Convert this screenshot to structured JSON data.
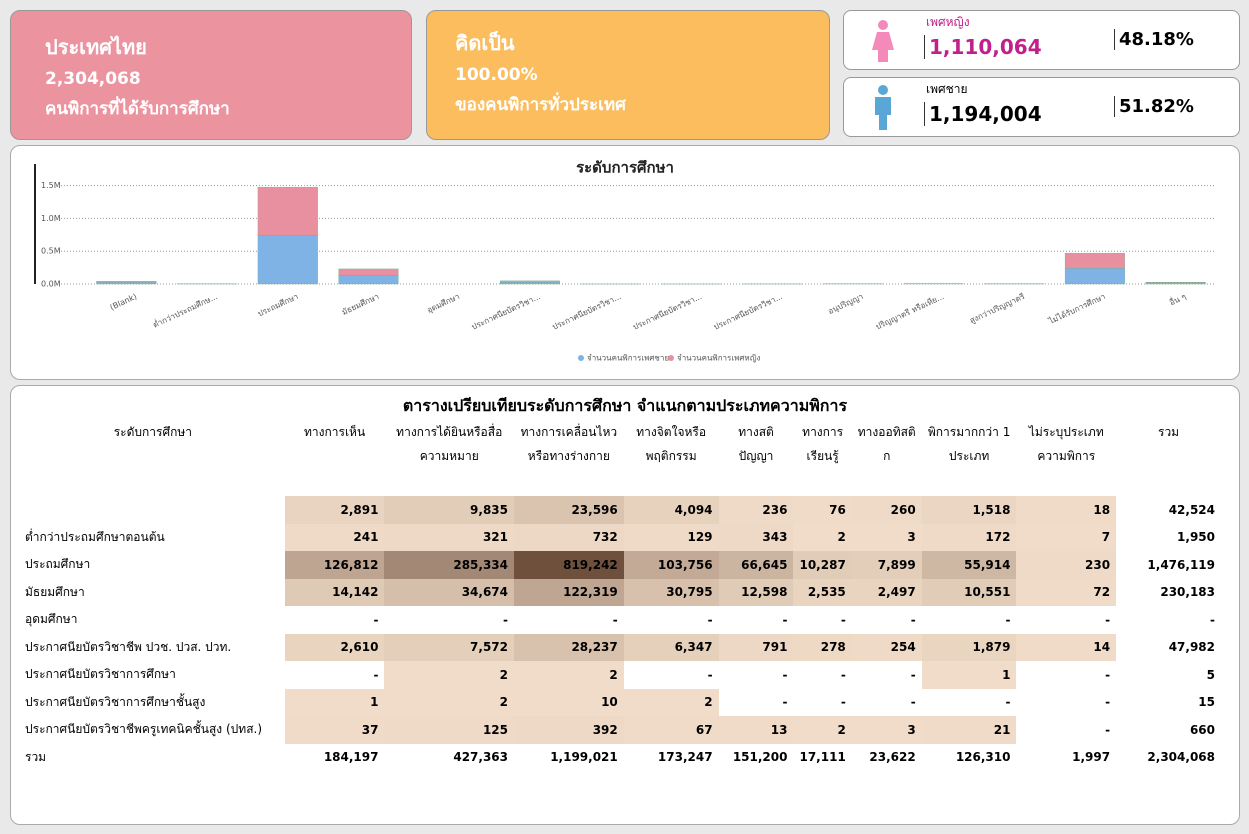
{
  "cards": [
    {
      "title": "ประเทศไทย",
      "value": "2,304,068",
      "subtitle": "คนพิการที่ได้รับการศึกษา"
    },
    {
      "title": "คิดเป็น",
      "value": "100.00%",
      "subtitle": "ของคนพิการทั่วประเทศ"
    }
  ],
  "gender": [
    {
      "label": "เพศหญิง",
      "count": "1,110,064",
      "percent": "48.18%"
    },
    {
      "label": "เพศชาย",
      "count": "1,194,004",
      "percent": "51.82%"
    }
  ],
  "chart_data": {
    "type": "stacked_bar",
    "title": "ระดับการศึกษา",
    "categories": [
      "(Blank)",
      "ต่ำกว่าประถมศึกษ...",
      "ประถมศึกษา",
      "มัธยมศึกษา",
      "อุดมศึกษา",
      "ประกาศนียบัตรวิชา...",
      "ประกาศนียบัตรวิชา...",
      "ประกาศนียบัตรวิชา...",
      "ประกาศนียบัตรวิชา...",
      "อนุปริญญา",
      "ปริญญาตรี หรือเทีย...",
      "สูงกว่าปริญญาตรี",
      "ไม่ได้รับการศึกษา",
      "อื่น ๆ"
    ],
    "series": [
      {
        "name": "จำนวนคนพิการเพศชาย",
        "color": "#7fb2e5",
        "values": [
          25000,
          1000,
          740000,
          130000,
          0,
          28000,
          3,
          8,
          400,
          3000,
          4000,
          2000,
          240000,
          20000
        ]
      },
      {
        "name": "จำนวนคนพิการเพศหญิง",
        "color": "#e8909f",
        "values": [
          17500,
          950,
          736000,
          100000,
          0,
          20000,
          2,
          7,
          260,
          2000,
          3000,
          1500,
          230000,
          8000
        ]
      }
    ],
    "ylim": [
      0,
      1600000
    ],
    "yticks": [
      {
        "value": 0,
        "label": "0.0M"
      },
      {
        "value": 500000,
        "label": "0.5M"
      },
      {
        "value": 1000000,
        "label": "1.0M"
      },
      {
        "value": 1500000,
        "label": "1.5M"
      }
    ],
    "grid": true,
    "legend": "bottom"
  },
  "table": {
    "title": "ตารางเปรียบเทียบระดับการศึกษา จำแนกตามประเภทความพิการ",
    "headers": [
      "ระดับการศึกษา",
      "ทางการเห็น",
      "ทางการได้ยินหรือสื่อความหมาย",
      "ทางการเคลื่อนไหวหรือทางร่างกาย",
      "ทางจิตใจหรือพฤติกรรม",
      "ทางสติปัญญา",
      "ทางการเรียนรู้",
      "ทางออทิสติก",
      "พิการมากกว่า 1 ประเภท",
      "ไม่ระบุประเภทความพิการ",
      "รวม"
    ],
    "rows": [
      {
        "cells": [
          "2,891",
          "9,835",
          "23,596",
          "4,094",
          "236",
          "76",
          "260",
          "1,518",
          "18",
          "42,524"
        ]
      },
      {
        "label": "ต่ำกว่าประถมศึกษาตอนต้น",
        "cells": [
          "241",
          "321",
          "732",
          "129",
          "343",
          "2",
          "3",
          "172",
          "7",
          "1,950"
        ]
      },
      {
        "label": "ประถมศึกษา",
        "cells": [
          "126,812",
          "285,334",
          "819,242",
          "103,756",
          "66,645",
          "10,287",
          "7,899",
          "55,914",
          "230",
          "1,476,119"
        ]
      },
      {
        "label": "มัธยมศึกษา",
        "cells": [
          "14,142",
          "34,674",
          "122,319",
          "30,795",
          "12,598",
          "2,535",
          "2,497",
          "10,551",
          "72",
          "230,183"
        ]
      },
      {
        "label": "อุดมศึกษา",
        "cells": [
          "-",
          "-",
          "-",
          "-",
          "-",
          "-",
          "-",
          "-",
          "-",
          "-"
        ]
      },
      {
        "label": "ประกาศนียบัตรวิชาชีพ ปวช. ปวส. ปวท.",
        "cells": [
          "2,610",
          "7,572",
          "28,237",
          "6,347",
          "791",
          "278",
          "254",
          "1,879",
          "14",
          "47,982"
        ]
      },
      {
        "label": "ประกาศนียบัตรวิชาการศึกษา",
        "cells": [
          "-",
          "2",
          "2",
          "-",
          "-",
          "-",
          "-",
          "1",
          "-",
          "5"
        ]
      },
      {
        "label": "ประกาศนียบัตรวิชาการศึกษาชั้นสูง",
        "cells": [
          "1",
          "2",
          "10",
          "2",
          "-",
          "-",
          "-",
          "-",
          "-",
          "15"
        ]
      },
      {
        "label": "ประกาศนียบัตรวิชาชีพครูเทคนิคชั้นสูง (ปทส.)",
        "cells": [
          "37",
          "125",
          "392",
          "67",
          "13",
          "2",
          "3",
          "21",
          "-",
          "660"
        ]
      },
      {
        "label": "รวม",
        "cells": [
          "184,197",
          "427,363",
          "1,199,021",
          "173,247",
          "151,200",
          "17,111",
          "23,622",
          "126,310",
          "1,997",
          "2,304,068"
        ]
      }
    ]
  }
}
